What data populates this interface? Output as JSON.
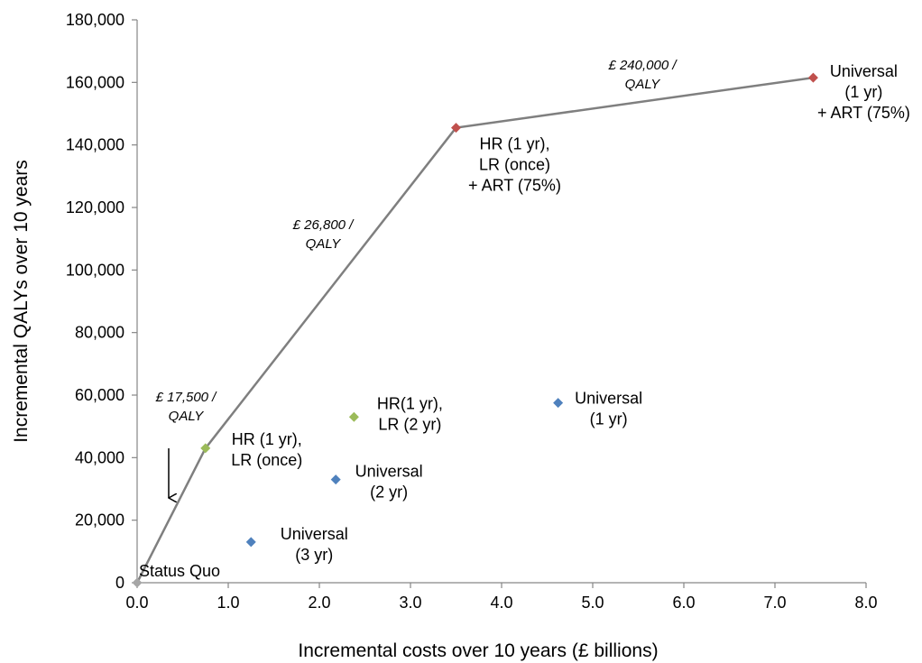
{
  "chart_data": {
    "type": "scatter",
    "xlabel": "Incremental costs over 10 years (£ billions)",
    "ylabel": "Incremental QALYs over 10 years",
    "xlim": [
      0,
      8
    ],
    "ylim": [
      0,
      180000
    ],
    "x_ticks": [
      "0.0",
      "1.0",
      "2.0",
      "3.0",
      "4.0",
      "5.0",
      "6.0",
      "7.0",
      "8.0"
    ],
    "y_ticks": [
      "0",
      "20,000",
      "40,000",
      "60,000",
      "80,000",
      "100,000",
      "120,000",
      "140,000",
      "160,000",
      "180,000"
    ],
    "grid": false,
    "colors": {
      "frontier": "#7f7f7f",
      "status_quo": "#a6a6a6",
      "green": "#9bbb59",
      "blue": "#4f81bd",
      "red": "#c0504d"
    },
    "frontier": [
      {
        "x": 0.0,
        "y": 0
      },
      {
        "x": 0.75,
        "y": 43000
      },
      {
        "x": 3.5,
        "y": 145500
      },
      {
        "x": 7.42,
        "y": 161500
      }
    ],
    "points": [
      {
        "id": "status-quo",
        "x": 0.0,
        "y": 0,
        "color": "status_quo",
        "label": [
          "Status Quo"
        ]
      },
      {
        "id": "hr1-lronce",
        "x": 0.75,
        "y": 43000,
        "color": "green",
        "label": [
          "HR (1 yr),",
          "LR (once)"
        ]
      },
      {
        "id": "hr1-lr2",
        "x": 2.38,
        "y": 53000,
        "color": "green",
        "label": [
          "HR(1 yr),",
          "LR (2 yr)"
        ]
      },
      {
        "id": "universal-2yr",
        "x": 2.18,
        "y": 33000,
        "color": "blue",
        "label": [
          "Universal",
          "(2 yr)"
        ]
      },
      {
        "id": "universal-3yr",
        "x": 1.25,
        "y": 13000,
        "color": "blue",
        "label": [
          "Universal",
          "(3 yr)"
        ]
      },
      {
        "id": "universal-1yr",
        "x": 4.62,
        "y": 57500,
        "color": "blue",
        "label": [
          "Universal",
          "(1 yr)"
        ]
      },
      {
        "id": "hr1-lronce-art",
        "x": 3.5,
        "y": 145500,
        "color": "red",
        "label": [
          "HR (1 yr),",
          "LR (once)",
          "+ ART (75%)"
        ]
      },
      {
        "id": "universal-1yr-art",
        "x": 7.42,
        "y": 161500,
        "color": "red",
        "label": [
          "Universal",
          "(1 yr)",
          "+ ART (75%)"
        ]
      }
    ],
    "annotations": [
      {
        "id": "icer-17500",
        "text": [
          "£ 17,500 /",
          "QALY"
        ]
      },
      {
        "id": "icer-26800",
        "text": [
          "£ 26,800 /",
          "QALY"
        ]
      },
      {
        "id": "icer-240000",
        "text": [
          "£ 240,000 /",
          "QALY"
        ]
      }
    ]
  }
}
